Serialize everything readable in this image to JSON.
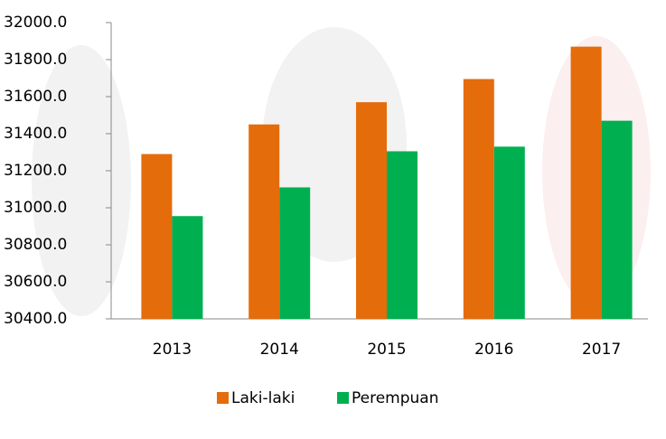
{
  "chart_data": {
    "type": "bar",
    "categories": [
      "2013",
      "2014",
      "2015",
      "2016",
      "2017"
    ],
    "series": [
      {
        "name": "Laki-laki",
        "color": "#e46c0a",
        "values": [
          31290,
          31450,
          31570,
          31695,
          31870
        ]
      },
      {
        "name": "Perempuan",
        "color": "#00b050",
        "values": [
          30955,
          31110,
          31305,
          31330,
          31470
        ]
      }
    ],
    "ylim": [
      30400,
      32000
    ],
    "yticks": [
      {
        "value": 30400,
        "label": "30400.0"
      },
      {
        "value": 30600,
        "label": "30600.0"
      },
      {
        "value": 30800,
        "label": "30800.0"
      },
      {
        "value": 31000,
        "label": "31000.0"
      },
      {
        "value": 31200,
        "label": "31200.0"
      },
      {
        "value": 31400,
        "label": "31400.0"
      },
      {
        "value": 31600,
        "label": "31600.0"
      },
      {
        "value": 31800,
        "label": "31800.0"
      },
      {
        "value": 32000,
        "label": "32000.0"
      }
    ],
    "grid": false,
    "legend": "bottom"
  }
}
